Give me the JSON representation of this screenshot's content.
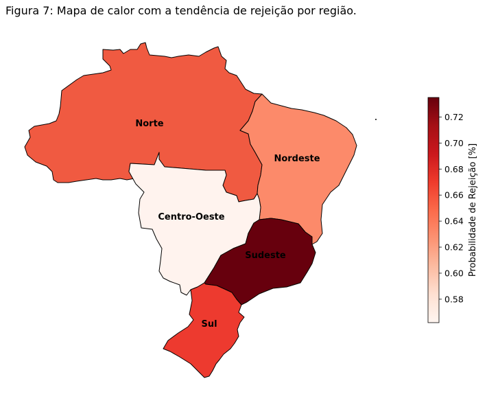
{
  "title": "Figura 7: Mapa de calor com a tendência de rejeição por região.",
  "chart_data": {
    "type": "choropleth",
    "regions": [
      {
        "name": "Norte",
        "value": 0.653,
        "color": "#f05a41"
      },
      {
        "name": "Nordeste",
        "value": 0.628,
        "color": "#fc8a6a"
      },
      {
        "name": "Centro-Oeste",
        "value": 0.565,
        "color": "#fff3ee"
      },
      {
        "name": "Sudeste",
        "value": 0.733,
        "color": "#67000d"
      },
      {
        "name": "Sul",
        "value": 0.67,
        "color": "#ed3a2f"
      }
    ],
    "colorbar": {
      "label": "Probabilidade de Rejeição [%]",
      "min": 0.562,
      "max": 0.735,
      "ticks": [
        "0.58",
        "0.60",
        "0.62",
        "0.64",
        "0.66",
        "0.68",
        "0.70",
        "0.72"
      ],
      "colormap": "Reds"
    }
  }
}
